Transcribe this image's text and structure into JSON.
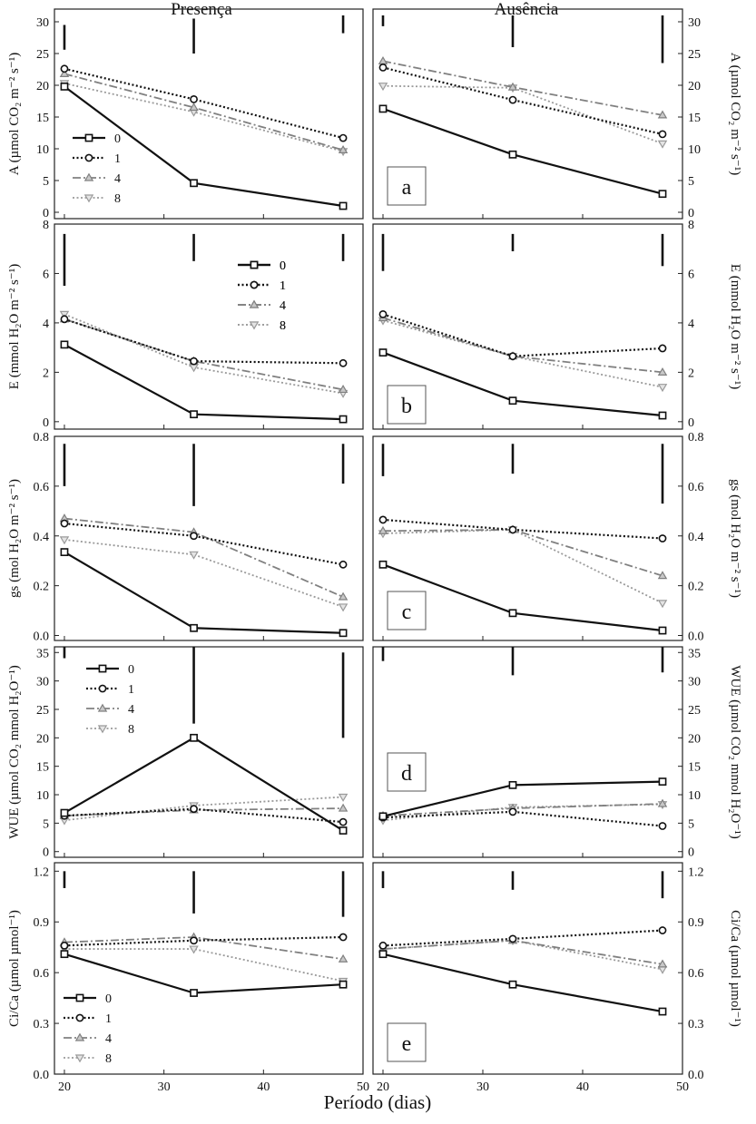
{
  "column_titles": [
    "Presença",
    "Ausência"
  ],
  "xlabel": "Período (dias)",
  "x_ticks": [
    20,
    30,
    40,
    50
  ],
  "x_range": [
    19,
    50
  ],
  "legend": [
    "0",
    "1",
    "4",
    "8"
  ],
  "series_styles": [
    {
      "name": "0",
      "color": "#111111",
      "dash": "",
      "width": 2.2,
      "marker": "square"
    },
    {
      "name": "1",
      "color": "#111111",
      "dash": "2,2.5",
      "width": 2.2,
      "marker": "circle"
    },
    {
      "name": "4",
      "color": "#808080",
      "dash": "9,3,2,3",
      "width": 1.8,
      "marker": "triangle-up"
    },
    {
      "name": "8",
      "color": "#9a9a9a",
      "dash": "2,2.5",
      "width": 1.8,
      "marker": "triangle-down"
    }
  ],
  "chart_data": [
    {
      "type": "line",
      "panel": "a",
      "ylabel": "A (µmol CO₂ m⁻² s⁻¹)",
      "ylim": [
        -1,
        32
      ],
      "yticks": [
        "0",
        "5",
        "10",
        "15",
        "20",
        "25",
        "30"
      ],
      "ytick_values": [
        0,
        5,
        10,
        15,
        20,
        25,
        30
      ],
      "legend_position": "left",
      "presenca": {
        "x": [
          20,
          33,
          48
        ],
        "series": [
          {
            "name": "0",
            "values": [
              19.8,
              4.6,
              1.0
            ]
          },
          {
            "name": "1",
            "values": [
              22.6,
              17.8,
              11.7
            ]
          },
          {
            "name": "4",
            "values": [
              21.8,
              16.5,
              9.8
            ]
          },
          {
            "name": "8",
            "values": [
              20.3,
              15.8,
              9.6
            ]
          }
        ],
        "lsd_bars": [
          [
            20,
            25.6,
            29.5
          ],
          [
            33,
            25.0,
            30.5
          ],
          [
            48,
            28.2,
            31.0
          ]
        ]
      },
      "ausencia": {
        "x": [
          20,
          33,
          48
        ],
        "series": [
          {
            "name": "0",
            "values": [
              16.3,
              9.1,
              2.9
            ]
          },
          {
            "name": "1",
            "values": [
              22.8,
              17.7,
              12.3
            ]
          },
          {
            "name": "4",
            "values": [
              23.8,
              19.7,
              15.3
            ]
          },
          {
            "name": "8",
            "values": [
              19.9,
              19.6,
              10.8
            ]
          }
        ],
        "lsd_bars": [
          [
            20,
            29.3,
            31.0
          ],
          [
            33,
            26.0,
            31.0
          ],
          [
            48,
            23.5,
            31.0
          ]
        ]
      }
    },
    {
      "type": "line",
      "panel": "b",
      "ylabel": "E (mmol H₂O m⁻² s⁻¹)",
      "ylim": [
        -0.3,
        8
      ],
      "yticks": [
        "0",
        "2",
        "4",
        "6",
        "8"
      ],
      "ytick_values": [
        0,
        2,
        4,
        6,
        8
      ],
      "legend_position": "upper-middle",
      "presenca": {
        "x": [
          20,
          33,
          48
        ],
        "series": [
          {
            "name": "0",
            "values": [
              3.12,
              0.3,
              0.1
            ]
          },
          {
            "name": "1",
            "values": [
              4.15,
              2.45,
              2.37
            ]
          },
          {
            "name": "4",
            "values": [
              4.15,
              2.45,
              1.3
            ]
          },
          {
            "name": "8",
            "values": [
              4.35,
              2.2,
              1.15
            ]
          }
        ],
        "lsd_bars": [
          [
            20,
            5.5,
            7.6
          ],
          [
            33,
            6.5,
            7.6
          ],
          [
            48,
            6.5,
            7.6
          ]
        ]
      },
      "ausencia": {
        "x": [
          20,
          33,
          48
        ],
        "series": [
          {
            "name": "0",
            "values": [
              2.8,
              0.85,
              0.25
            ]
          },
          {
            "name": "1",
            "values": [
              4.35,
              2.65,
              2.97
            ]
          },
          {
            "name": "4",
            "values": [
              4.2,
              2.65,
              2.0
            ]
          },
          {
            "name": "8",
            "values": [
              4.1,
              2.65,
              1.4
            ]
          }
        ],
        "lsd_bars": [
          [
            20,
            6.1,
            7.6
          ],
          [
            33,
            6.9,
            7.6
          ],
          [
            48,
            6.3,
            7.6
          ]
        ]
      }
    },
    {
      "type": "line",
      "panel": "c",
      "ylabel": "gs (mol H₂O m⁻² s⁻¹)",
      "ylim": [
        -0.02,
        0.8
      ],
      "yticks": [
        "0.0",
        "0.2",
        "0.4",
        "0.6",
        "0.8"
      ],
      "ytick_values": [
        0,
        0.2,
        0.4,
        0.6,
        0.8
      ],
      "legend_position": "upper-middle",
      "presenca": {
        "x": [
          20,
          33,
          48
        ],
        "series": [
          {
            "name": "0",
            "values": [
              0.335,
              0.03,
              0.01
            ]
          },
          {
            "name": "1",
            "values": [
              0.45,
              0.4,
              0.285
            ]
          },
          {
            "name": "4",
            "values": [
              0.47,
              0.415,
              0.155
            ]
          },
          {
            "name": "8",
            "values": [
              0.385,
              0.325,
              0.115
            ]
          }
        ],
        "lsd_bars": [
          [
            20,
            0.6,
            0.77
          ],
          [
            33,
            0.52,
            0.77
          ],
          [
            48,
            0.61,
            0.77
          ]
        ]
      },
      "ausencia": {
        "x": [
          20,
          33,
          48
        ],
        "series": [
          {
            "name": "0",
            "values": [
              0.285,
              0.09,
              0.02
            ]
          },
          {
            "name": "1",
            "values": [
              0.465,
              0.425,
              0.39
            ]
          },
          {
            "name": "4",
            "values": [
              0.42,
              0.425,
              0.24
            ]
          },
          {
            "name": "8",
            "values": [
              0.41,
              0.425,
              0.13
            ]
          }
        ],
        "lsd_bars": [
          [
            20,
            0.64,
            0.77
          ],
          [
            33,
            0.65,
            0.77
          ],
          [
            48,
            0.53,
            0.77
          ]
        ]
      }
    },
    {
      "type": "line",
      "panel": "d",
      "ylabel": "WUE (µmol CO₂ mmol H₂O⁻¹)",
      "ylim": [
        -1,
        36
      ],
      "yticks": [
        "0",
        "5",
        "10",
        "15",
        "20",
        "25",
        "30",
        "35"
      ],
      "ytick_values": [
        0,
        5,
        10,
        15,
        20,
        25,
        30,
        35
      ],
      "legend_position": "upper-left",
      "presenca": {
        "x": [
          20,
          33,
          48
        ],
        "series": [
          {
            "name": "0",
            "values": [
              6.8,
              20.0,
              3.7
            ]
          },
          {
            "name": "1",
            "values": [
              6.3,
              7.5,
              5.2
            ]
          },
          {
            "name": "4",
            "values": [
              6.3,
              7.3,
              7.6
            ]
          },
          {
            "name": "8",
            "values": [
              5.5,
              8.1,
              9.6
            ]
          }
        ],
        "lsd_bars": [
          [
            20,
            34.0,
            36.0
          ],
          [
            33,
            22.5,
            36.0
          ],
          [
            48,
            20.0,
            35.0
          ]
        ]
      },
      "ausencia": {
        "x": [
          20,
          33,
          48
        ],
        "series": [
          {
            "name": "0",
            "values": [
              6.2,
              11.7,
              12.3
            ]
          },
          {
            "name": "1",
            "values": [
              6.0,
              7.0,
              4.5
            ]
          },
          {
            "name": "4",
            "values": [
              6.3,
              7.6,
              8.4
            ]
          },
          {
            "name": "8",
            "values": [
              5.5,
              7.8,
              8.3
            ]
          }
        ],
        "lsd_bars": [
          [
            20,
            33.5,
            36.0
          ],
          [
            33,
            31.0,
            36.0
          ],
          [
            48,
            31.5,
            36.0
          ]
        ]
      }
    },
    {
      "type": "line",
      "panel": "e",
      "ylabel": "Ci/Ca (µmol µmol⁻¹)",
      "ylim": [
        0,
        1.25
      ],
      "yticks": [
        "0.0",
        "0.3",
        "0.6",
        "0.9",
        "1.2"
      ],
      "ytick_values": [
        0,
        0.3,
        0.6,
        0.9,
        1.2
      ],
      "legend_position": "lower-left",
      "presenca": {
        "x": [
          20,
          33,
          48
        ],
        "series": [
          {
            "name": "0",
            "values": [
              0.71,
              0.48,
              0.53
            ]
          },
          {
            "name": "1",
            "values": [
              0.76,
              0.79,
              0.81
            ]
          },
          {
            "name": "4",
            "values": [
              0.78,
              0.81,
              0.68
            ]
          },
          {
            "name": "8",
            "values": [
              0.74,
              0.74,
              0.55
            ]
          }
        ],
        "lsd_bars": [
          [
            20,
            1.1,
            1.2
          ],
          [
            33,
            0.95,
            1.2
          ],
          [
            48,
            0.93,
            1.2
          ]
        ]
      },
      "ausencia": {
        "x": [
          20,
          33,
          48
        ],
        "series": [
          {
            "name": "0",
            "values": [
              0.71,
              0.53,
              0.37
            ]
          },
          {
            "name": "1",
            "values": [
              0.76,
              0.8,
              0.85
            ]
          },
          {
            "name": "4",
            "values": [
              0.74,
              0.79,
              0.65
            ]
          },
          {
            "name": "8",
            "values": [
              0.74,
              0.79,
              0.62
            ]
          }
        ],
        "lsd_bars": [
          [
            20,
            1.1,
            1.2
          ],
          [
            33,
            1.09,
            1.2
          ],
          [
            48,
            1.04,
            1.2
          ]
        ]
      }
    }
  ]
}
